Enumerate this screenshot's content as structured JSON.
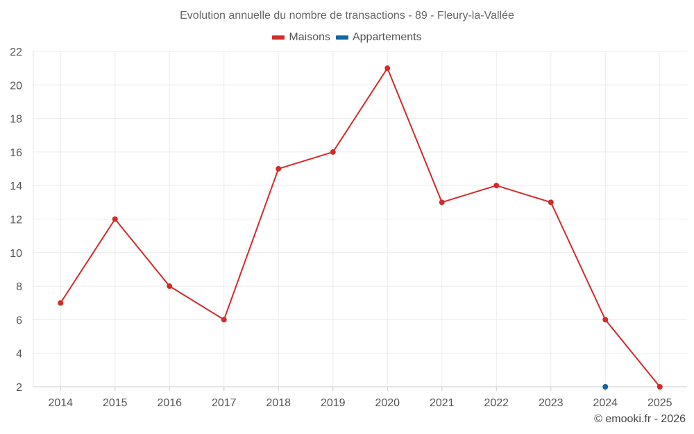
{
  "chart_data": {
    "type": "line",
    "title": "Evolution annuelle du nombre de transactions - 89 - Fleury-la-Vallée",
    "categories": [
      "2014",
      "2015",
      "2016",
      "2017",
      "2018",
      "2019",
      "2020",
      "2021",
      "2022",
      "2023",
      "2024",
      "2025"
    ],
    "series": [
      {
        "name": "Maisons",
        "color": "#d32a2a",
        "values": [
          7,
          12,
          8,
          6,
          15,
          16,
          21,
          13,
          14,
          13,
          6,
          2
        ]
      },
      {
        "name": "Appartements",
        "color": "#1464a0",
        "values": [
          null,
          null,
          null,
          null,
          null,
          null,
          null,
          null,
          null,
          null,
          2,
          null
        ]
      }
    ],
    "ylim": [
      2,
      22
    ],
    "yticks": [
      2,
      4,
      6,
      8,
      10,
      12,
      14,
      16,
      18,
      20,
      22
    ],
    "xlabel": "",
    "ylabel": "",
    "grid": true,
    "legend_position": "top-center"
  },
  "credit": "© emooki.fr - 2026"
}
